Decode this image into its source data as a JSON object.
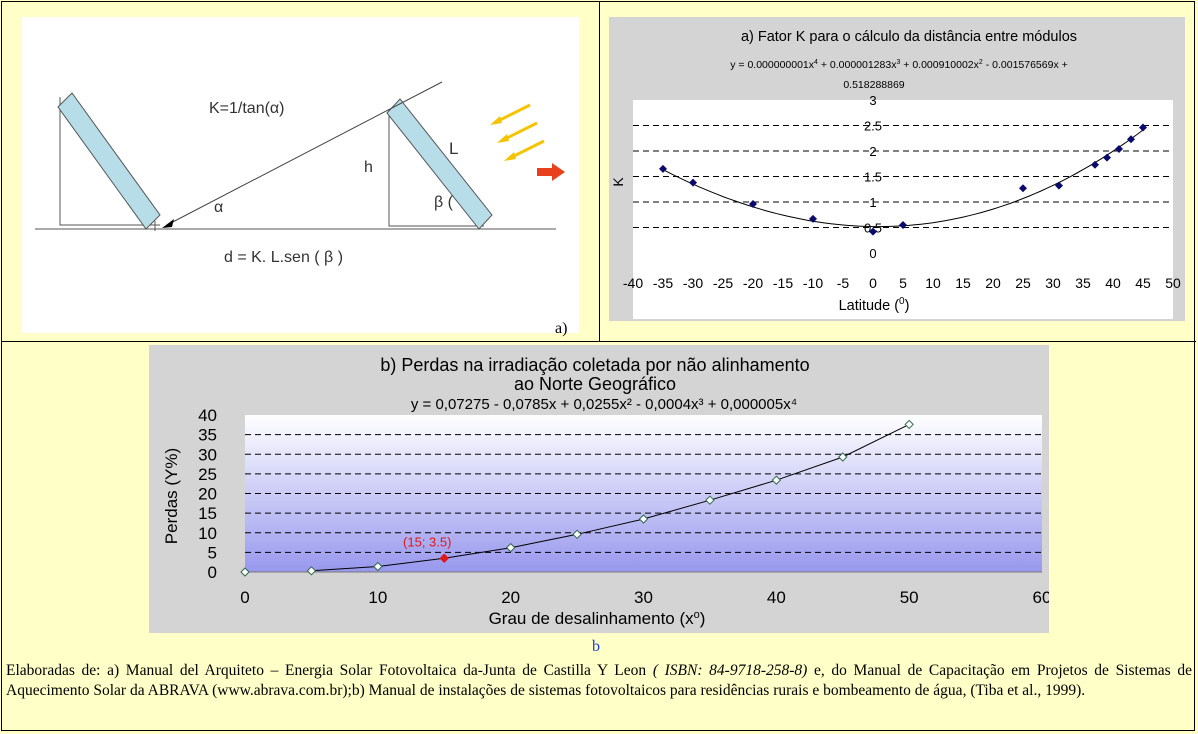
{
  "diagram": {
    "k_formula": "K=1/tan(α)",
    "h_label": "h",
    "l_label": "L",
    "alpha_label": "α",
    "beta_label": "β (",
    "d_formula": "d = K. L.sen ( β )",
    "colors": {
      "panel": "#b7dde8",
      "sun_arrows": "#f5c400",
      "direction_arrow": "#e8401c"
    }
  },
  "label_a": "a)",
  "label_b": "b",
  "caption": {
    "p1": "Elaboradas de: a) Manual del Arquiteto – Energia Solar Fotovoltaica da-Junta de Castilla Y Leon ",
    "isbn": "( ISBN: 84-9718-258-8)",
    "p2": " e, do Manual de Capacitação em Projetos de Sistemas de Aquecimento Solar da ABRAVA (www.abrava.com.br);b) Manual de instalações de sistemas fotovoltaicos para residências rurais e bombeamento de água, (Tiba et al., 1999)."
  },
  "chart_data": [
    {
      "type": "scatter",
      "title": "a) Fator K para o cálculo da distância entre módulos",
      "equation": "y = 0.000000001x⁴ + 0.000001283x³ + 0.000910002x² - 0.001576569x + 0.518288869",
      "xlabel": "Latitude (⁰)",
      "ylabel": "K",
      "xlim": [
        -40,
        50
      ],
      "ylim": [
        0,
        3
      ],
      "x_ticks": [
        "-40",
        "-35",
        "-30",
        "-25",
        "-20",
        "-15",
        "-10",
        "-5",
        "0",
        "5",
        "10",
        "15",
        "20",
        "25",
        "30",
        "35",
        "40",
        "45",
        "50"
      ],
      "y_ticks": [
        "0",
        "0.5",
        "1",
        "1.5",
        "2",
        "2.5",
        "3"
      ],
      "grid": "dashed horizontal",
      "trendline_coefficients": [
        0.518288869,
        -0.001576569,
        0.000910002,
        1.283e-06,
        1e-09
      ],
      "points": [
        {
          "x": -35,
          "y": 1.65
        },
        {
          "x": -30,
          "y": 1.38
        },
        {
          "x": -20,
          "y": 0.96
        },
        {
          "x": -10,
          "y": 0.67
        },
        {
          "x": 0,
          "y": 0.42
        },
        {
          "x": 5,
          "y": 0.55
        },
        {
          "x": 25,
          "y": 1.27
        },
        {
          "x": 31,
          "y": 1.32
        },
        {
          "x": 37,
          "y": 1.73
        },
        {
          "x": 39,
          "y": 1.87
        },
        {
          "x": 41,
          "y": 2.04
        },
        {
          "x": 43,
          "y": 2.23
        },
        {
          "x": 45,
          "y": 2.46
        }
      ],
      "colors": {
        "marker": "#0a0a6e",
        "line": "#000000",
        "plot_bg": "#ffffff"
      }
    },
    {
      "type": "scatter",
      "title_line1": "b) Perdas na irradiação coletada por não alinhamento",
      "title_line2": "ao Norte Geográfico",
      "equation": "y = 0,07275 - 0,0785x + 0,0255x² - 0,0004x³  + 0,000005x⁴",
      "xlabel": "Grau de desalinhamento (x⁰)",
      "ylabel": "Perdas (Y%)",
      "xlim": [
        0,
        60
      ],
      "ylim": [
        0,
        40
      ],
      "x_ticks": [
        "0",
        "10",
        "20",
        "30",
        "40",
        "50",
        "60"
      ],
      "y_ticks": [
        "0",
        "5",
        "10",
        "15",
        "20",
        "25",
        "30",
        "35",
        "40"
      ],
      "grid": "dashed horizontal",
      "points": [
        {
          "x": 0,
          "y": 0
        },
        {
          "x": 5,
          "y": 0.3
        },
        {
          "x": 10,
          "y": 1.4
        },
        {
          "x": 15,
          "y": 3.5
        },
        {
          "x": 20,
          "y": 6.2
        },
        {
          "x": 25,
          "y": 9.6
        },
        {
          "x": 30,
          "y": 13.5
        },
        {
          "x": 35,
          "y": 18.3
        },
        {
          "x": 40,
          "y": 23.4
        },
        {
          "x": 45,
          "y": 29.3
        },
        {
          "x": 50,
          "y": 37.6
        }
      ],
      "highlight": {
        "x": 15,
        "y": 3.5,
        "label": "(15; 3.5)"
      },
      "colors": {
        "highlight": "#e01818",
        "plot_top": "#ffffff",
        "plot_bottom": "#9898ee",
        "line": "#000000"
      }
    }
  ]
}
